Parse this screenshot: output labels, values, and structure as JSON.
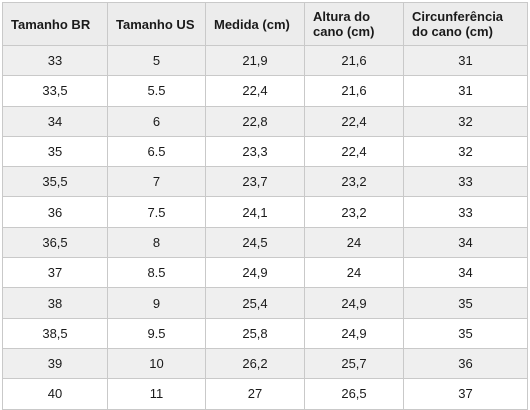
{
  "table": {
    "header": [
      "Tamanho BR",
      "Tamanho US",
      "Medida (cm)",
      "Altura do cano (cm)",
      "Circunferência do cano (cm)"
    ],
    "rows": [
      [
        "33",
        "5",
        "21,9",
        "21,6",
        "31"
      ],
      [
        "33,5",
        "5.5",
        "22,4",
        "21,6",
        "31"
      ],
      [
        "34",
        "6",
        "22,8",
        "22,4",
        "32"
      ],
      [
        "35",
        "6.5",
        "23,3",
        "22,4",
        "32"
      ],
      [
        "35,5",
        "7",
        "23,7",
        "23,2",
        "33"
      ],
      [
        "36",
        "7.5",
        "24,1",
        "23,2",
        "33"
      ],
      [
        "36,5",
        "8",
        "24,5",
        "24",
        "34"
      ],
      [
        "37",
        "8.5",
        "24,9",
        "24",
        "34"
      ],
      [
        "38",
        "9",
        "25,4",
        "24,9",
        "35"
      ],
      [
        "38,5",
        "9.5",
        "25,8",
        "24,9",
        "35"
      ],
      [
        "39",
        "10",
        "26,2",
        "25,7",
        "36"
      ],
      [
        "40",
        "11",
        "27",
        "26,5",
        "37"
      ]
    ]
  }
}
